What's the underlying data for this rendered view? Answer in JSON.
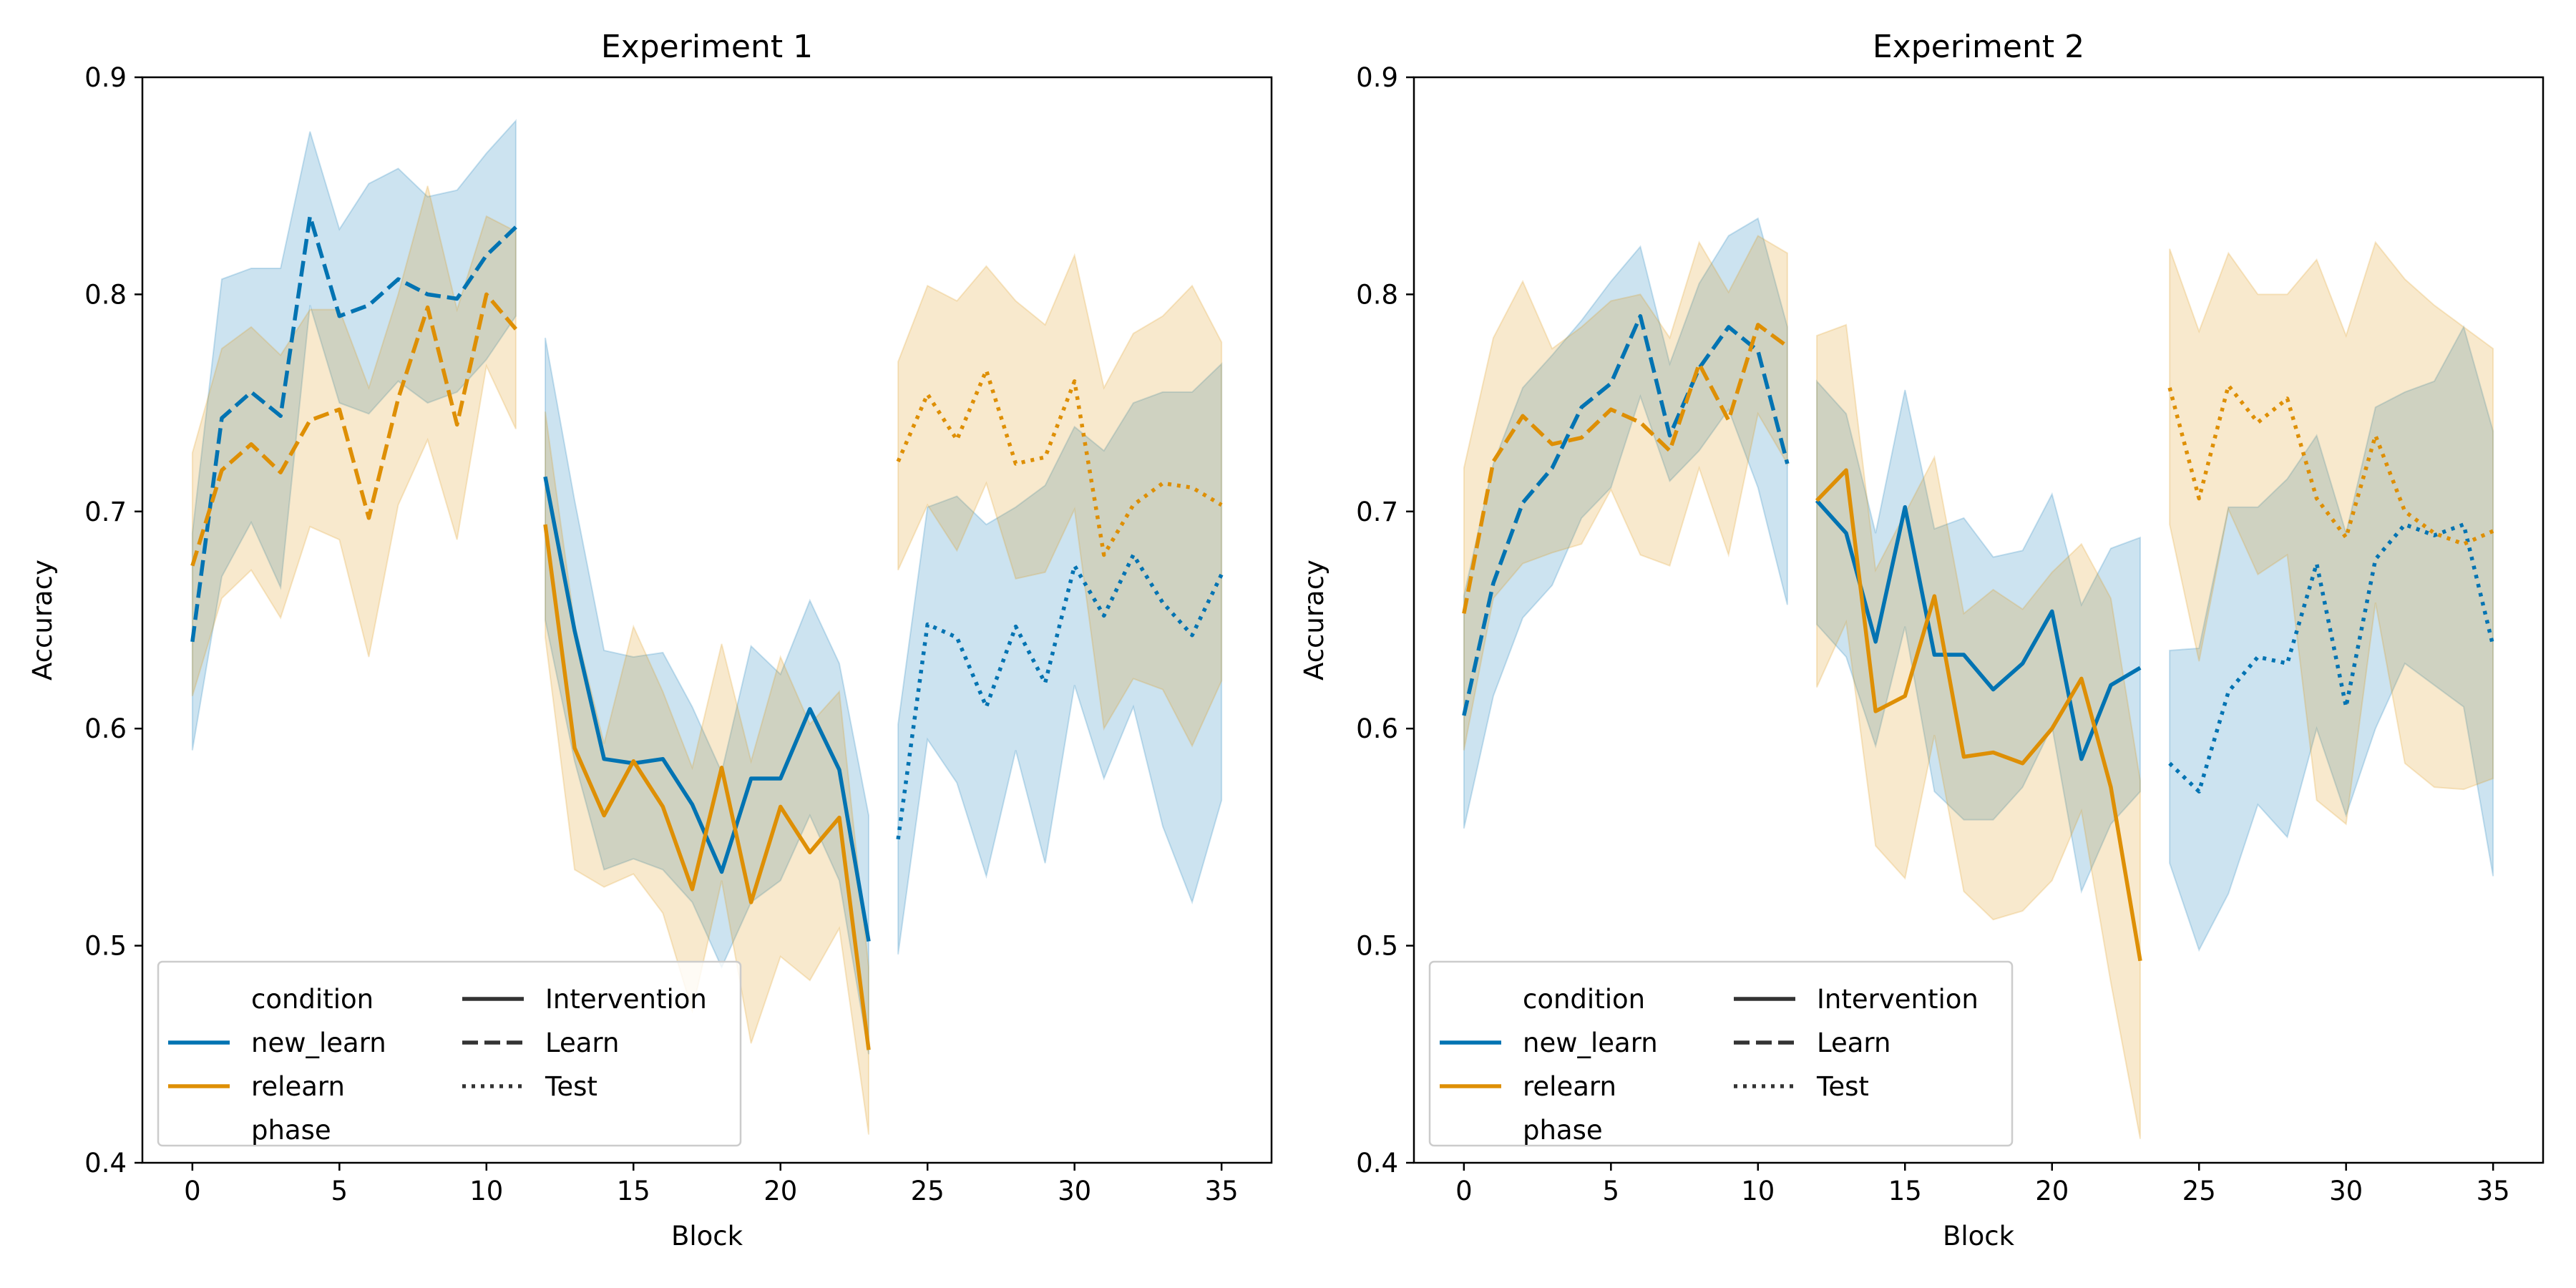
{
  "chart_data": [
    {
      "type": "line",
      "title": "Experiment 1",
      "xlabel": "Block",
      "ylabel": "Accuracy",
      "xlim": [
        -1.7,
        36.7
      ],
      "ylim": [
        0.4,
        0.9
      ],
      "xticks": [
        0,
        5,
        10,
        15,
        20,
        25,
        30,
        35
      ],
      "yticks": [
        "0.4",
        "0.5",
        "0.6",
        "0.7",
        "0.8",
        "0.9"
      ],
      "grid": false,
      "legend_placement": "lower-left",
      "series": [
        {
          "condition": "new_learn",
          "phase": "Learn",
          "color": "#0173b2",
          "dash": "dashed",
          "x": [
            0,
            1,
            2,
            3,
            4,
            5,
            6,
            7,
            8,
            9,
            10,
            11
          ],
          "y": [
            0.64,
            0.743,
            0.755,
            0.744,
            0.836,
            0.79,
            0.795,
            0.807,
            0.8,
            0.798,
            0.818,
            0.831
          ],
          "lower": [
            0.59,
            0.67,
            0.695,
            0.665,
            0.795,
            0.75,
            0.745,
            0.76,
            0.75,
            0.755,
            0.77,
            0.79
          ],
          "upper": [
            0.69,
            0.807,
            0.812,
            0.812,
            0.875,
            0.83,
            0.851,
            0.858,
            0.845,
            0.848,
            0.865,
            0.88
          ]
        },
        {
          "condition": "new_learn",
          "phase": "Intervention",
          "color": "#0173b2",
          "dash": "solid",
          "x": [
            12,
            13,
            14,
            15,
            16,
            17,
            18,
            19,
            20,
            21,
            22,
            23
          ],
          "y": [
            0.716,
            0.645,
            0.586,
            0.584,
            0.586,
            0.565,
            0.534,
            0.577,
            0.577,
            0.609,
            0.581,
            0.502
          ],
          "lower": [
            0.65,
            0.585,
            0.535,
            0.54,
            0.535,
            0.52,
            0.49,
            0.52,
            0.53,
            0.56,
            0.53,
            0.45
          ],
          "upper": [
            0.78,
            0.705,
            0.636,
            0.633,
            0.635,
            0.61,
            0.58,
            0.638,
            0.625,
            0.659,
            0.63,
            0.56
          ]
        },
        {
          "condition": "new_learn",
          "phase": "Test",
          "color": "#0173b2",
          "dash": "dotted",
          "x": [
            24,
            25,
            26,
            27,
            28,
            29,
            30,
            31,
            32,
            33,
            34,
            35
          ],
          "y": [
            0.549,
            0.648,
            0.642,
            0.61,
            0.647,
            0.621,
            0.675,
            0.652,
            0.68,
            0.658,
            0.643,
            0.671
          ],
          "lower": [
            0.496,
            0.595,
            0.575,
            0.532,
            0.59,
            0.538,
            0.62,
            0.577,
            0.61,
            0.555,
            0.52,
            0.567
          ],
          "upper": [
            0.602,
            0.702,
            0.707,
            0.694,
            0.702,
            0.712,
            0.739,
            0.728,
            0.75,
            0.755,
            0.755,
            0.768
          ]
        },
        {
          "condition": "relearn",
          "phase": "Learn",
          "color": "#de8f05",
          "dash": "dashed",
          "x": [
            0,
            1,
            2,
            3,
            4,
            5,
            6,
            7,
            8,
            9,
            10,
            11
          ],
          "y": [
            0.675,
            0.719,
            0.731,
            0.718,
            0.742,
            0.747,
            0.697,
            0.752,
            0.794,
            0.74,
            0.8,
            0.784
          ],
          "lower": [
            0.615,
            0.66,
            0.673,
            0.651,
            0.693,
            0.687,
            0.633,
            0.703,
            0.733,
            0.687,
            0.767,
            0.738
          ],
          "upper": [
            0.727,
            0.775,
            0.785,
            0.772,
            0.793,
            0.793,
            0.757,
            0.8,
            0.85,
            0.793,
            0.836,
            0.829
          ]
        },
        {
          "condition": "relearn",
          "phase": "Intervention",
          "color": "#de8f05",
          "dash": "solid",
          "x": [
            12,
            13,
            14,
            15,
            16,
            17,
            18,
            19,
            20,
            21,
            22,
            23
          ],
          "y": [
            0.694,
            0.591,
            0.56,
            0.585,
            0.564,
            0.526,
            0.582,
            0.52,
            0.564,
            0.543,
            0.559,
            0.452
          ],
          "lower": [
            0.642,
            0.535,
            0.527,
            0.533,
            0.515,
            0.47,
            0.53,
            0.455,
            0.495,
            0.484,
            0.508,
            0.413
          ],
          "upper": [
            0.746,
            0.648,
            0.593,
            0.647,
            0.617,
            0.582,
            0.639,
            0.585,
            0.633,
            0.602,
            0.617,
            0.49
          ]
        },
        {
          "condition": "relearn",
          "phase": "Test",
          "color": "#de8f05",
          "dash": "dotted",
          "x": [
            24,
            25,
            26,
            27,
            28,
            29,
            30,
            31,
            32,
            33,
            34,
            35
          ],
          "y": [
            0.723,
            0.754,
            0.733,
            0.765,
            0.722,
            0.725,
            0.76,
            0.68,
            0.703,
            0.713,
            0.711,
            0.703
          ],
          "lower": [
            0.673,
            0.703,
            0.682,
            0.713,
            0.669,
            0.672,
            0.701,
            0.6,
            0.623,
            0.618,
            0.592,
            0.622
          ],
          "upper": [
            0.769,
            0.804,
            0.797,
            0.813,
            0.797,
            0.786,
            0.818,
            0.757,
            0.782,
            0.79,
            0.804,
            0.778
          ]
        }
      ]
    },
    {
      "type": "line",
      "title": "Experiment 2",
      "xlabel": "Block",
      "ylabel": "Accuracy",
      "xlim": [
        -1.7,
        36.7
      ],
      "ylim": [
        0.4,
        0.9
      ],
      "xticks": [
        0,
        5,
        10,
        15,
        20,
        25,
        30,
        35
      ],
      "yticks": [
        "0.4",
        "0.5",
        "0.6",
        "0.7",
        "0.8",
        "0.9"
      ],
      "grid": false,
      "legend_placement": "lower-left",
      "series": [
        {
          "condition": "new_learn",
          "phase": "Learn",
          "color": "#0173b2",
          "dash": "dashed",
          "x": [
            0,
            1,
            2,
            3,
            4,
            5,
            6,
            7,
            8,
            9,
            10,
            11
          ],
          "y": [
            0.606,
            0.667,
            0.704,
            0.72,
            0.748,
            0.759,
            0.79,
            0.735,
            0.766,
            0.785,
            0.774,
            0.722
          ],
          "lower": [
            0.554,
            0.615,
            0.651,
            0.666,
            0.697,
            0.711,
            0.753,
            0.714,
            0.728,
            0.747,
            0.711,
            0.657
          ],
          "upper": [
            0.661,
            0.722,
            0.757,
            0.772,
            0.788,
            0.806,
            0.822,
            0.768,
            0.805,
            0.827,
            0.835,
            0.785
          ]
        },
        {
          "condition": "new_learn",
          "phase": "Intervention",
          "color": "#0173b2",
          "dash": "solid",
          "x": [
            12,
            13,
            14,
            15,
            16,
            17,
            18,
            19,
            20,
            21,
            22,
            23
          ],
          "y": [
            0.705,
            0.69,
            0.64,
            0.702,
            0.634,
            0.634,
            0.618,
            0.63,
            0.654,
            0.586,
            0.62,
            0.628
          ],
          "lower": [
            0.648,
            0.633,
            0.592,
            0.647,
            0.571,
            0.558,
            0.558,
            0.573,
            0.601,
            0.525,
            0.556,
            0.571
          ],
          "upper": [
            0.76,
            0.745,
            0.69,
            0.756,
            0.692,
            0.697,
            0.679,
            0.682,
            0.708,
            0.657,
            0.683,
            0.688
          ]
        },
        {
          "condition": "new_learn",
          "phase": "Test",
          "color": "#0173b2",
          "dash": "dotted",
          "x": [
            24,
            25,
            26,
            27,
            28,
            29,
            30,
            31,
            32,
            33,
            34,
            35
          ],
          "y": [
            0.584,
            0.571,
            0.617,
            0.633,
            0.63,
            0.676,
            0.61,
            0.678,
            0.694,
            0.689,
            0.694,
            0.638
          ],
          "lower": [
            0.538,
            0.498,
            0.524,
            0.565,
            0.55,
            0.6,
            0.56,
            0.6,
            0.63,
            0.62,
            0.61,
            0.532
          ],
          "upper": [
            0.636,
            0.637,
            0.702,
            0.702,
            0.715,
            0.735,
            0.69,
            0.748,
            0.755,
            0.76,
            0.785,
            0.737
          ]
        },
        {
          "condition": "relearn",
          "phase": "Learn",
          "color": "#de8f05",
          "dash": "dashed",
          "x": [
            0,
            1,
            2,
            3,
            4,
            5,
            6,
            7,
            8,
            9,
            10,
            11
          ],
          "y": [
            0.653,
            0.723,
            0.744,
            0.731,
            0.734,
            0.747,
            0.741,
            0.728,
            0.768,
            0.742,
            0.786,
            0.776
          ],
          "lower": [
            0.59,
            0.66,
            0.676,
            0.681,
            0.685,
            0.71,
            0.68,
            0.675,
            0.72,
            0.68,
            0.745,
            0.722
          ],
          "upper": [
            0.72,
            0.78,
            0.806,
            0.775,
            0.785,
            0.797,
            0.8,
            0.78,
            0.824,
            0.801,
            0.827,
            0.819
          ]
        },
        {
          "condition": "relearn",
          "phase": "Intervention",
          "color": "#de8f05",
          "dash": "solid",
          "x": [
            12,
            13,
            14,
            15,
            16,
            17,
            18,
            19,
            20,
            21,
            22,
            23
          ],
          "y": [
            0.705,
            0.719,
            0.608,
            0.615,
            0.661,
            0.587,
            0.589,
            0.584,
            0.6,
            0.623,
            0.573,
            0.493
          ],
          "lower": [
            0.619,
            0.649,
            0.546,
            0.531,
            0.597,
            0.525,
            0.512,
            0.516,
            0.53,
            0.562,
            0.483,
            0.411
          ],
          "upper": [
            0.781,
            0.786,
            0.673,
            0.699,
            0.725,
            0.653,
            0.664,
            0.655,
            0.672,
            0.685,
            0.66,
            0.576
          ]
        },
        {
          "condition": "relearn",
          "phase": "Test",
          "color": "#de8f05",
          "dash": "dotted",
          "x": [
            24,
            25,
            26,
            27,
            28,
            29,
            30,
            31,
            32,
            33,
            34,
            35
          ],
          "y": [
            0.757,
            0.706,
            0.758,
            0.741,
            0.752,
            0.706,
            0.688,
            0.735,
            0.7,
            0.69,
            0.685,
            0.691
          ],
          "lower": [
            0.694,
            0.631,
            0.701,
            0.671,
            0.68,
            0.567,
            0.556,
            0.658,
            0.584,
            0.573,
            0.572,
            0.577
          ],
          "upper": [
            0.821,
            0.783,
            0.819,
            0.8,
            0.8,
            0.816,
            0.781,
            0.824,
            0.807,
            0.795,
            0.785,
            0.775
          ]
        }
      ]
    }
  ],
  "legend": {
    "condition_header": "condition",
    "phase_header": "phase",
    "conditions": [
      {
        "label": "new_learn",
        "color": "#0173b2"
      },
      {
        "label": "relearn",
        "color": "#de8f05"
      }
    ],
    "phases": [
      {
        "label": "Intervention",
        "dash": "solid"
      },
      {
        "label": "Learn",
        "dash": "dashed"
      },
      {
        "label": "Test",
        "dash": "dotted"
      }
    ]
  }
}
